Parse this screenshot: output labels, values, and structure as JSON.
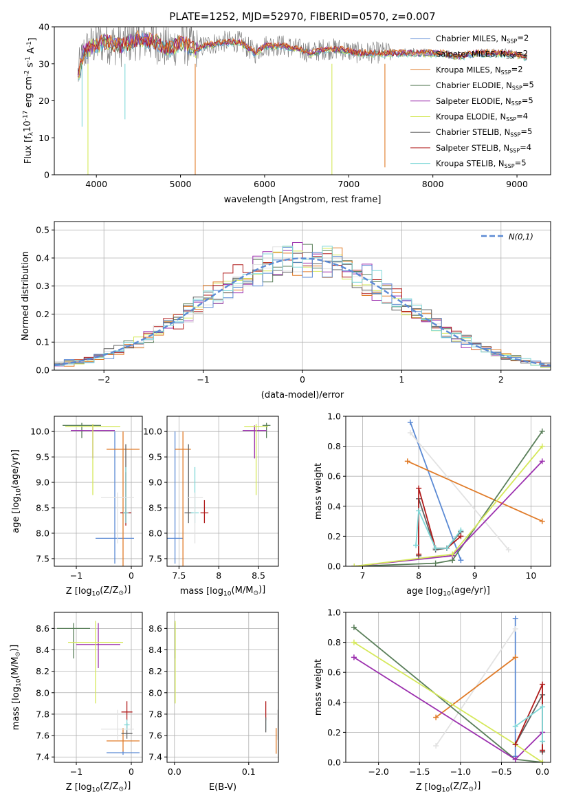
{
  "figure": {
    "title": "PLATE=1252, MJD=52970, FIBERID=0570, z=0.007"
  },
  "series_styles": [
    {
      "name": "Chabrier MILES, N$_{SSP}$=2",
      "color": "#5b8ad4"
    },
    {
      "name": "Salpeter MILES, N$_{SSP}$=2",
      "color": "#e2e2e2"
    },
    {
      "name": "Kroupa MILES, N$_{SSP}$=2",
      "color": "#e07b28"
    },
    {
      "name": "Chabrier ELODIE, N$_{SSP}$=5",
      "color": "#5a7f5a"
    },
    {
      "name": "Salpeter ELODIE, N$_{SSP}$=5",
      "color": "#9b2fae"
    },
    {
      "name": "Kroupa ELODIE, N$_{SSP}$=4",
      "color": "#d5e85a"
    },
    {
      "name": "Chabrier STELIB, N$_{SSP}$=5",
      "color": "#606060"
    },
    {
      "name": "Salpeter STELIB, N$_{SSP}$=4",
      "color": "#b01c1c"
    },
    {
      "name": "Kroupa STELIB, N$_{SSP}$=5",
      "color": "#7fd8d8"
    }
  ],
  "chart_data": [
    {
      "type": "line",
      "xlabel": "wavelength [Angstrom, rest frame]",
      "ylabel": "Flux [f$_\\lambda$10$^{-17}$ erg cm$^{-2}$ s$^{-1}$ A$^{-1}$]",
      "xlim": [
        3500,
        9400
      ],
      "ylim": [
        0,
        40
      ],
      "xticks": [
        4000,
        5000,
        6000,
        7000,
        8000,
        9000
      ],
      "yticks": [
        0,
        10,
        20,
        30,
        40
      ],
      "data_color": "#808080",
      "data_x": [
        3780,
        3850,
        3950,
        4100,
        4300,
        4500,
        4700,
        4861,
        5000,
        5175,
        5300,
        5500,
        5700,
        5890,
        6000,
        6200,
        6400,
        6563,
        6700,
        6900,
        7100,
        7300,
        7500,
        7700,
        7900,
        8100,
        8300,
        8500,
        8700,
        8900,
        9100
      ],
      "data_y": [
        27,
        33,
        35,
        36,
        35,
        37,
        36,
        34,
        36,
        34,
        35,
        36,
        36,
        33,
        35,
        35,
        34,
        33,
        34,
        34,
        33,
        33,
        33,
        33,
        33,
        33,
        32,
        33,
        33,
        33,
        32
      ],
      "dips": [
        {
          "x": 3900,
          "y": 0,
          "series": 5
        },
        {
          "x": 5175,
          "y": 0,
          "series": 2
        },
        {
          "x": 6800,
          "y": 0,
          "series": 5
        },
        {
          "x": 7430,
          "y": 2,
          "series": 2
        },
        {
          "x": 4340,
          "y": 15,
          "series": 8
        },
        {
          "x": 3830,
          "y": 13,
          "series": 8
        }
      ],
      "legend": "top-right"
    },
    {
      "type": "histogram",
      "xlabel": "(data-model)/error",
      "ylabel": "Normed distribution",
      "xlim": [
        -2.5,
        2.5
      ],
      "ylim": [
        0,
        0.53
      ],
      "xticks": [
        -2,
        -1,
        0,
        1,
        2
      ],
      "yticks": [
        0.0,
        0.1,
        0.2,
        0.3,
        0.4,
        0.5
      ],
      "bin_width": 0.1,
      "reference_curve": {
        "label": "$\\mathcal{N}(0,1)$",
        "color": "#5b8ad4",
        "style": "dashed"
      }
    },
    {
      "type": "errorbar",
      "xlabel": "Z [log$_{10}$(Z/Z$_\\odot$)]",
      "ylabel": "age  [log$_{10}$(age/yr)]",
      "xlim": [
        -1.4,
        0.2
      ],
      "ylim": [
        7.35,
        10.3
      ],
      "xticks": [
        -1,
        0
      ],
      "yticks": [
        7.5,
        8.0,
        8.5,
        9.0,
        9.5,
        10.0
      ],
      "points": [
        {
          "series": 0,
          "x": -0.3,
          "y": 7.9,
          "xerr": 0.35,
          "yerr_lo": 0.5,
          "yerr_hi": 2.1
        },
        {
          "series": 2,
          "x": -0.15,
          "y": 9.65,
          "xerr": 0.3,
          "yerr_lo": 2.3,
          "yerr_hi": 0.35
        },
        {
          "series": 3,
          "x": -0.9,
          "y": 10.12,
          "xerr": 0.35,
          "yerr_lo": 0.25,
          "yerr_hi": 0.05
        },
        {
          "series": 4,
          "x": -0.7,
          "y": 10.02,
          "xerr": 0.4,
          "yerr_lo": 0.55,
          "yerr_hi": 0.1
        },
        {
          "series": 5,
          "x": -0.7,
          "y": 10.1,
          "xerr": 0.5,
          "yerr_lo": 1.35,
          "yerr_hi": 0.05
        },
        {
          "series": 6,
          "x": -0.1,
          "y": 8.4,
          "xerr": 0.1,
          "yerr_lo": 0.2,
          "yerr_hi": 1.35
        },
        {
          "series": 7,
          "x": -0.1,
          "y": 8.4,
          "xerr": 0.1,
          "yerr_lo": 0.25,
          "yerr_hi": 0.8
        },
        {
          "series": 8,
          "x": -0.1,
          "y": 8.4,
          "xerr": 0.05,
          "yerr_lo": 0.2,
          "yerr_hi": 0.9
        },
        {
          "series": 1,
          "x": -0.25,
          "y": 8.7,
          "xerr": 0.3,
          "yerr_lo": 0.9,
          "yerr_hi": 0.1
        }
      ]
    },
    {
      "type": "errorbar",
      "xlabel": "mass [log$_{10}$(M/M$_\\odot$)]",
      "ylabel": "",
      "xlim": [
        7.35,
        8.75
      ],
      "ylim": [
        7.35,
        10.3
      ],
      "xticks": [
        7.5,
        8.0,
        8.5
      ],
      "yticks": [
        7.5,
        8.0,
        8.5,
        9.0,
        9.5,
        10.0
      ],
      "points": [
        {
          "series": 0,
          "x": 7.45,
          "y": 7.9,
          "xerr": 0.1,
          "yerr_lo": 0.5,
          "yerr_hi": 2.1
        },
        {
          "series": 2,
          "x": 7.55,
          "y": 9.65,
          "xerr": 0.1,
          "yerr_lo": 2.3,
          "yerr_hi": 0.35
        },
        {
          "series": 3,
          "x": 8.6,
          "y": 10.12,
          "xerr": 0.05,
          "yerr_lo": 0.25,
          "yerr_hi": 0.05
        },
        {
          "series": 4,
          "x": 8.45,
          "y": 10.02,
          "xerr": 0.15,
          "yerr_lo": 0.55,
          "yerr_hi": 0.1
        },
        {
          "series": 5,
          "x": 8.47,
          "y": 10.1,
          "xerr": 0.15,
          "yerr_lo": 1.35,
          "yerr_hi": 0.05
        },
        {
          "series": 6,
          "x": 7.62,
          "y": 8.4,
          "xerr": 0.05,
          "yerr_lo": 0.2,
          "yerr_hi": 1.35
        },
        {
          "series": 7,
          "x": 7.82,
          "y": 8.4,
          "xerr": 0.05,
          "yerr_lo": 0.2,
          "yerr_hi": 0.25
        },
        {
          "series": 8,
          "x": 7.7,
          "y": 8.4,
          "xerr": 0.05,
          "yerr_lo": 0.2,
          "yerr_hi": 0.9
        },
        {
          "series": 1,
          "x": 7.7,
          "y": 8.7,
          "xerr": 0.1,
          "yerr_lo": 0.9,
          "yerr_hi": 0.1
        }
      ]
    },
    {
      "type": "line",
      "xlabel": "age  [log$_{10}$(age/yr)]",
      "ylabel": "mass weight",
      "xlim": [
        6.7,
        10.35
      ],
      "ylim": [
        0,
        1.0
      ],
      "xticks": [
        7,
        8,
        9,
        10
      ],
      "yticks": [
        0.0,
        0.2,
        0.4,
        0.6,
        0.8,
        1.0
      ],
      "series": [
        {
          "series": 0,
          "x": [
            7.85,
            8.75
          ],
          "y": [
            0.96,
            0.04
          ]
        },
        {
          "series": 1,
          "x": [
            7.85,
            9.6
          ],
          "y": [
            0.89,
            0.11
          ]
        },
        {
          "series": 2,
          "x": [
            7.8,
            10.2
          ],
          "y": [
            0.7,
            0.3
          ]
        },
        {
          "series": 3,
          "x": [
            6.85,
            8.3,
            8.6,
            10.2
          ],
          "y": [
            0.0,
            0.02,
            0.04,
            0.9
          ]
        },
        {
          "series": 4,
          "x": [
            6.85,
            8.6,
            10.2
          ],
          "y": [
            0.0,
            0.07,
            0.7
          ]
        },
        {
          "series": 5,
          "x": [
            6.85,
            8.6,
            10.2
          ],
          "y": [
            0.0,
            0.08,
            0.8
          ]
        },
        {
          "series": 6,
          "x": [
            8.0,
            8.0,
            8.3,
            8.5,
            8.75
          ],
          "y": [
            0.07,
            0.45,
            0.11,
            0.12,
            0.23
          ]
        },
        {
          "series": 7,
          "x": [
            8.0,
            8.0,
            8.3,
            8.5,
            8.75
          ],
          "y": [
            0.08,
            0.52,
            0.12,
            0.12,
            0.2
          ]
        },
        {
          "series": 8,
          "x": [
            7.95,
            8.0,
            8.3,
            8.5,
            8.75
          ],
          "y": [
            0.14,
            0.37,
            0.12,
            0.12,
            0.24
          ]
        }
      ]
    },
    {
      "type": "errorbar",
      "xlabel": "Z [log$_{10}$(Z/Z$_\\odot$)]",
      "ylabel": "mass [log$_{10}$(M/M$_\\odot$)]",
      "xlim": [
        -1.4,
        0.2
      ],
      "ylim": [
        7.35,
        8.75
      ],
      "xticks": [
        -1,
        0
      ],
      "yticks": [
        7.4,
        7.6,
        7.8,
        8.0,
        8.2,
        8.4,
        8.6
      ],
      "points": [
        {
          "series": 0,
          "x": -0.15,
          "y": 7.44,
          "xerr": 0.3,
          "yerr_lo": 0.02,
          "yerr_hi": 0.02
        },
        {
          "series": 2,
          "x": -0.15,
          "y": 7.55,
          "xerr": 0.3,
          "yerr_lo": 0.1,
          "yerr_hi": 0.12
        },
        {
          "series": 3,
          "x": -1.05,
          "y": 8.6,
          "xerr": 0.3,
          "yerr_lo": 0.28,
          "yerr_hi": 0.05
        },
        {
          "series": 4,
          "x": -0.6,
          "y": 8.45,
          "xerr": 0.4,
          "yerr_lo": 0.22,
          "yerr_hi": 0.2
        },
        {
          "series": 5,
          "x": -0.65,
          "y": 8.47,
          "xerr": 0.5,
          "yerr_lo": 0.57,
          "yerr_hi": 0.2
        },
        {
          "series": 6,
          "x": -0.08,
          "y": 7.62,
          "xerr": 0.1,
          "yerr_lo": 0.05,
          "yerr_hi": 0.1
        },
        {
          "series": 7,
          "x": -0.08,
          "y": 7.82,
          "xerr": 0.1,
          "yerr_lo": 0.08,
          "yerr_hi": 0.1
        },
        {
          "series": 8,
          "x": -0.08,
          "y": 7.7,
          "xerr": 0.05,
          "yerr_lo": 0.05,
          "yerr_hi": 0.05
        },
        {
          "series": 1,
          "x": -0.25,
          "y": 7.66,
          "xerr": 0.3,
          "yerr_lo": 0.1,
          "yerr_hi": 0.18
        }
      ]
    },
    {
      "type": "errorbar",
      "xlabel": "E(B-V)",
      "ylabel": "",
      "xlim": [
        -0.01,
        0.14
      ],
      "ylim": [
        7.35,
        8.75
      ],
      "xticks": [
        0.0,
        0.1
      ],
      "yticks": [
        7.4,
        7.6,
        7.8,
        8.0,
        8.2,
        8.4,
        8.6
      ],
      "points": [
        {
          "series": 3,
          "x": 0.001,
          "y": 8.6,
          "xerr": 0.0,
          "yerr_lo": 0.28,
          "yerr_hi": 0.05
        },
        {
          "series": 5,
          "x": 0.001,
          "y": 8.47,
          "xerr": 0.0,
          "yerr_lo": 0.57,
          "yerr_hi": 0.2
        },
        {
          "series": 7,
          "x": 0.123,
          "y": 7.82,
          "xerr": 0.0,
          "yerr_lo": 0.08,
          "yerr_hi": 0.1
        },
        {
          "series": 8,
          "x": 0.123,
          "y": 7.7,
          "xerr": 0.0,
          "yerr_lo": 0.05,
          "yerr_hi": 0.05
        },
        {
          "series": 6,
          "x": 0.123,
          "y": 7.7,
          "xerr": 0.0,
          "yerr_lo": 0.07,
          "yerr_hi": 0.07
        },
        {
          "series": 2,
          "x": 0.137,
          "y": 7.55,
          "xerr": 0.0,
          "yerr_lo": 0.12,
          "yerr_hi": 0.12
        },
        {
          "series": 1,
          "x": 0.139,
          "y": 7.66,
          "xerr": 0.0,
          "yerr_lo": 0.1,
          "yerr_hi": 0.18
        }
      ]
    },
    {
      "type": "line",
      "xlabel": "Z [log$_{10}$(Z/Z$_\\odot$)]",
      "ylabel": "mass weight",
      "xlim": [
        -2.4,
        0.1
      ],
      "ylim": [
        0,
        1.0
      ],
      "xticks": [
        -2.0,
        -1.5,
        -1.0,
        -0.5,
        0.0
      ],
      "yticks": [
        0.0,
        0.2,
        0.4,
        0.6,
        0.8,
        1.0
      ],
      "series": [
        {
          "series": 0,
          "x": [
            -0.33,
            -0.33
          ],
          "y": [
            0.96,
            0.04
          ]
        },
        {
          "series": 1,
          "x": [
            -1.3,
            -0.33
          ],
          "y": [
            0.11,
            0.89
          ]
        },
        {
          "series": 2,
          "x": [
            -1.3,
            -0.33
          ],
          "y": [
            0.3,
            0.7
          ]
        },
        {
          "series": 3,
          "x": [
            -2.3,
            -0.33,
            0.0
          ],
          "y": [
            0.9,
            0.02,
            0.0
          ]
        },
        {
          "series": 4,
          "x": [
            -2.3,
            -0.33,
            0.0
          ],
          "y": [
            0.7,
            0.02,
            0.2
          ]
        },
        {
          "series": 5,
          "x": [
            -2.3,
            -0.33,
            0.0
          ],
          "y": [
            0.8,
            0.12,
            0.0
          ]
        },
        {
          "series": 6,
          "x": [
            -0.33,
            0.0,
            0.0
          ],
          "y": [
            0.12,
            0.45,
            0.07
          ]
        },
        {
          "series": 7,
          "x": [
            -0.33,
            0.0,
            0.0
          ],
          "y": [
            0.12,
            0.52,
            0.08
          ]
        },
        {
          "series": 8,
          "x": [
            -0.33,
            0.0,
            0.0
          ],
          "y": [
            0.24,
            0.37,
            0.14
          ]
        }
      ]
    }
  ]
}
